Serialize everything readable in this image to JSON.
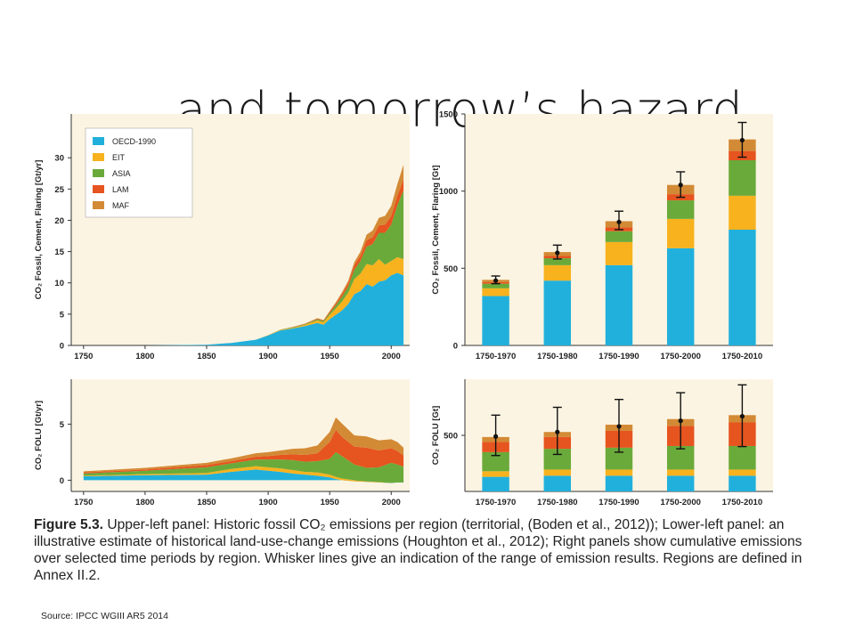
{
  "title": "… and tomorrow’s hazard",
  "caption": {
    "label": "Figure 5.3.",
    "text": " Upper-left panel: Historic fossil CO₂ emissions per region (territorial, (Boden et al., 2012)); Lower-left panel: an illustrative estimate of historical land-use-change emissions (Houghton et al., 2012); Right panels show cumulative emissions over selected time periods by region. Whisker lines give an indication of the range of emission results. Regions are defined in Annex II.2."
  },
  "source": "Source: IPCC WGIII AR5 2014",
  "colors": {
    "OECD-1990": "#21b0dc",
    "EIT": "#f7b21e",
    "ASIA": "#6aaa3a",
    "LAM": "#e6541f",
    "MAF": "#d38a35",
    "panel_bg": "#fcf4e2"
  },
  "chart_data": [
    {
      "id": "fossil_annual",
      "type": "area",
      "stacked": true,
      "ylabel": "CO₂ Fossil, Cement, Flaring [Gt/yr]",
      "xlim": [
        1740,
        2015
      ],
      "ylim": [
        0,
        37
      ],
      "xticks": [
        1750,
        1800,
        1850,
        1900,
        1950,
        2000
      ],
      "yticks": [
        0,
        5,
        10,
        15,
        20,
        25,
        30
      ],
      "legend": {
        "position": "top-left",
        "entries": [
          "OECD-1990",
          "EIT",
          "ASIA",
          "LAM",
          "MAF"
        ]
      },
      "x": [
        1750,
        1800,
        1850,
        1870,
        1890,
        1900,
        1910,
        1920,
        1930,
        1940,
        1945,
        1950,
        1955,
        1960,
        1965,
        1970,
        1975,
        1980,
        1985,
        1990,
        1995,
        2000,
        2005,
        2010
      ],
      "series": [
        {
          "name": "OECD-1990",
          "values": [
            0,
            0,
            0.1,
            0.4,
            0.9,
            1.6,
            2.4,
            2.7,
            3.1,
            3.6,
            3.3,
            4.2,
            4.9,
            5.6,
            6.6,
            8.2,
            8.7,
            9.8,
            9.4,
            10.2,
            10.4,
            11.2,
            11.6,
            11.2
          ]
        },
        {
          "name": "EIT",
          "values": [
            0,
            0,
            0,
            0,
            0,
            0.05,
            0.1,
            0.1,
            0.2,
            0.4,
            0.4,
            0.7,
            1.0,
            1.4,
            1.8,
            2.4,
            2.8,
            3.2,
            3.4,
            3.6,
            2.5,
            2.3,
            2.5,
            2.6
          ]
        },
        {
          "name": "ASIA",
          "values": [
            0,
            0,
            0,
            0,
            0,
            0,
            0.05,
            0.1,
            0.1,
            0.2,
            0.2,
            0.3,
            0.5,
            0.8,
            1.0,
            1.5,
            2.0,
            2.8,
            3.4,
            4.2,
            5.1,
            5.8,
            8.3,
            11.0
          ]
        },
        {
          "name": "LAM",
          "values": [
            0,
            0,
            0,
            0,
            0,
            0,
            0,
            0.05,
            0.05,
            0.1,
            0.1,
            0.2,
            0.3,
            0.4,
            0.5,
            0.7,
            0.8,
            1.0,
            1.1,
            1.2,
            1.3,
            1.4,
            1.5,
            1.8
          ]
        },
        {
          "name": "MAF",
          "values": [
            0,
            0,
            0,
            0,
            0,
            0,
            0,
            0,
            0.05,
            0.05,
            0.05,
            0.1,
            0.2,
            0.3,
            0.4,
            0.5,
            0.7,
            0.9,
            1.1,
            1.2,
            1.4,
            1.6,
            1.9,
            2.3
          ]
        }
      ]
    },
    {
      "id": "folu_annual",
      "type": "area",
      "stacked": true,
      "ylabel": "CO₂ FOLU [Gt/yr]",
      "xlim": [
        1740,
        2015
      ],
      "ylim": [
        -1,
        9
      ],
      "xticks": [
        1750,
        1800,
        1850,
        1900,
        1950,
        2000
      ],
      "yticks": [
        0,
        5
      ],
      "x": [
        1750,
        1800,
        1850,
        1870,
        1890,
        1900,
        1910,
        1920,
        1930,
        1940,
        1950,
        1955,
        1960,
        1970,
        1980,
        1990,
        2000,
        2005,
        2010
      ],
      "series": [
        {
          "name": "OECD-1990",
          "values": [
            0.35,
            0.45,
            0.5,
            0.75,
            0.95,
            0.85,
            0.75,
            0.6,
            0.5,
            0.4,
            0.25,
            0.1,
            0.0,
            -0.1,
            -0.15,
            -0.2,
            -0.25,
            -0.2,
            -0.2
          ]
        },
        {
          "name": "EIT",
          "values": [
            0.05,
            0.1,
            0.15,
            0.25,
            0.3,
            0.3,
            0.3,
            0.3,
            0.25,
            0.3,
            0.25,
            0.2,
            0.15,
            0.1,
            0.05,
            0.05,
            0.0,
            0.0,
            0.0
          ]
        },
        {
          "name": "ASIA",
          "values": [
            0.2,
            0.3,
            0.5,
            0.5,
            0.6,
            0.7,
            0.8,
            0.9,
            0.9,
            1.0,
            1.4,
            2.2,
            2.0,
            1.4,
            1.2,
            1.3,
            1.8,
            1.6,
            1.4
          ]
        },
        {
          "name": "LAM",
          "values": [
            0.1,
            0.1,
            0.2,
            0.2,
            0.25,
            0.3,
            0.4,
            0.5,
            0.6,
            0.7,
            1.5,
            2.0,
            1.7,
            1.6,
            1.8,
            1.5,
            1.3,
            1.2,
            1.0
          ]
        },
        {
          "name": "MAF",
          "values": [
            0.1,
            0.15,
            0.2,
            0.25,
            0.3,
            0.35,
            0.4,
            0.5,
            0.6,
            0.7,
            0.9,
            1.1,
            1.2,
            1.0,
            1.0,
            0.9,
            0.8,
            0.8,
            0.7
          ]
        }
      ]
    },
    {
      "id": "fossil_cumulative",
      "type": "bar",
      "stacked": true,
      "ylabel": "CO₂ Fossil, Cement, Flaring [Gt]",
      "ylim": [
        0,
        1500
      ],
      "yticks": [
        0,
        500,
        1000,
        1500
      ],
      "categories": [
        "1750-1970",
        "1750-1980",
        "1750-1990",
        "1750-2000",
        "1750-2010"
      ],
      "series": [
        {
          "name": "OECD-1990",
          "values": [
            320,
            420,
            520,
            630,
            750
          ]
        },
        {
          "name": "EIT",
          "values": [
            50,
            100,
            150,
            190,
            220
          ]
        },
        {
          "name": "ASIA",
          "values": [
            30,
            45,
            70,
            120,
            230
          ]
        },
        {
          "name": "LAM",
          "values": [
            10,
            15,
            25,
            40,
            60
          ]
        },
        {
          "name": "MAF",
          "values": [
            15,
            25,
            40,
            60,
            75
          ]
        }
      ],
      "error": {
        "center": [
          420,
          600,
          800,
          1040,
          1330
        ],
        "low": [
          400,
          560,
          750,
          960,
          1220
        ],
        "high": [
          450,
          650,
          870,
          1125,
          1445
        ]
      }
    },
    {
      "id": "folu_cumulative",
      "type": "bar",
      "stacked": true,
      "ylabel": "CO₂ FOLU [Gt]",
      "ylim": [
        0,
        1000
      ],
      "yticks": [
        500
      ],
      "categories": [
        "1750-1970",
        "1750-1980",
        "1750-1990",
        "1750-2000",
        "1750-2010"
      ],
      "series": [
        {
          "name": "OECD-1990",
          "values": [
            130,
            140,
            140,
            140,
            140
          ]
        },
        {
          "name": "EIT",
          "values": [
            50,
            55,
            55,
            55,
            55
          ]
        },
        {
          "name": "ASIA",
          "values": [
            170,
            185,
            195,
            210,
            210
          ]
        },
        {
          "name": "LAM",
          "values": [
            90,
            105,
            150,
            180,
            210
          ]
        },
        {
          "name": "MAF",
          "values": [
            45,
            45,
            55,
            60,
            65
          ]
        }
      ],
      "error": {
        "center": [
          490,
          530,
          580,
          630,
          670
        ],
        "low": [
          320,
          330,
          350,
          380,
          400
        ],
        "high": [
          680,
          750,
          820,
          880,
          950
        ]
      }
    }
  ]
}
